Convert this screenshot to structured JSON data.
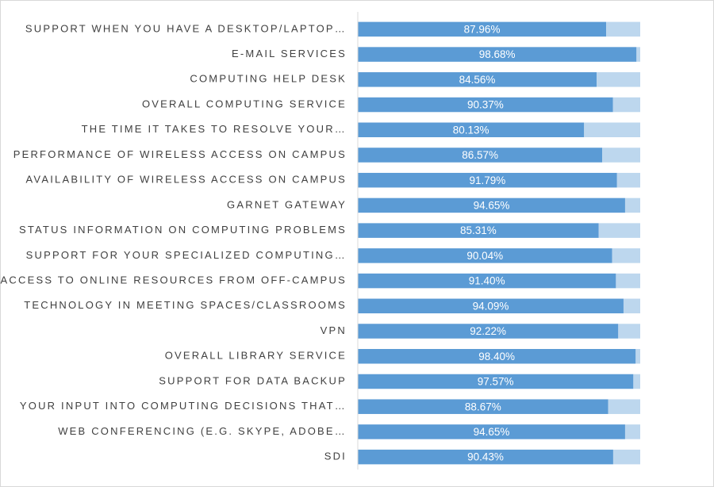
{
  "chart_data": {
    "type": "stacked-barh",
    "categories": [
      "SUPPORT WHEN YOU HAVE A DESKTOP/LAPTOP…",
      "E-MAIL SERVICES",
      "COMPUTING HELP DESK",
      "OVERALL COMPUTING SERVICE",
      "THE TIME IT TAKES TO RESOLVE YOUR…",
      "PERFORMANCE OF WIRELESS ACCESS ON CAMPUS",
      "AVAILABILITY OF WIRELESS ACCESS ON CAMPUS",
      "GARNET GATEWAY",
      "STATUS INFORMATION ON COMPUTING PROBLEMS",
      "SUPPORT FOR YOUR SPECIALIZED COMPUTING…",
      "ACCESS TO ONLINE RESOURCES FROM OFF-CAMPUS",
      "TECHNOLOGY IN MEETING SPACES/CLASSROOMS",
      "VPN",
      "OVERALL LIBRARY SERVICE",
      "SUPPORT FOR DATA BACKUP",
      "YOUR INPUT INTO COMPUTING DECISIONS THAT…",
      "WEB CONFERENCING (E.G. SKYPE, ADOBE…",
      "SDI"
    ],
    "series": [
      {
        "color": "#5b9bd5",
        "values": [
          87.96,
          98.68,
          84.56,
          90.37,
          80.13,
          86.57,
          91.79,
          94.65,
          85.31,
          90.04,
          91.4,
          94.09,
          92.22,
          98.4,
          97.57,
          88.67,
          94.65,
          90.43
        ],
        "value_labels": [
          "87.96%",
          "98.68%",
          "84.56%",
          "90.37%",
          "80.13%",
          "86.57%",
          "91.79%",
          "94.65%",
          "85.31%",
          "90.04%",
          "91.40%",
          "94.09%",
          "92.22%",
          "98.40%",
          "97.57%",
          "88.67%",
          "94.65%",
          "90.43%"
        ]
      },
      {
        "color": "#bdd7ee",
        "values": [
          12.04,
          1.32,
          15.44,
          9.63,
          19.87,
          13.43,
          8.21,
          5.35,
          14.69,
          9.96,
          8.6,
          5.91,
          7.78,
          1.6,
          2.43,
          11.33,
          5.35,
          9.57
        ]
      }
    ],
    "xlim": [
      0,
      100
    ]
  }
}
